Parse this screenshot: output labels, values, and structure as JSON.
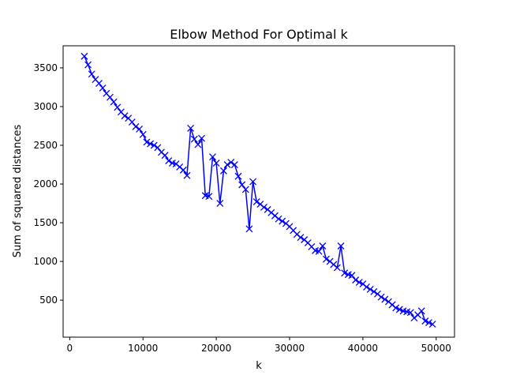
{
  "colors": {
    "series": "#0000ff",
    "axes": "#000000",
    "background": "#ffffff"
  },
  "chart_data": {
    "type": "line",
    "title": "Elbow Method For Optimal k",
    "xlabel": "k",
    "ylabel": "Sum of squared distances",
    "xlim": [
      -900,
      52500
    ],
    "ylim": [
      22,
      3785
    ],
    "grid": false,
    "marker": "x",
    "xticks": [
      0,
      10000,
      20000,
      30000,
      40000,
      50000
    ],
    "yticks": [
      500,
      1000,
      1500,
      2000,
      2500,
      3000,
      3500
    ],
    "series": [
      {
        "x": [
          2000,
          2500,
          3000,
          3500,
          4000,
          4500,
          5000,
          5500,
          6000,
          6500,
          7000,
          7500,
          8000,
          8500,
          9000,
          9500,
          10000,
          10500,
          11000,
          11500,
          12000,
          12500,
          13000,
          13500,
          14000,
          14500,
          15000,
          15500,
          16000,
          16500,
          17000,
          17500,
          18000,
          18500,
          19000,
          19500,
          20000,
          20500,
          21000,
          21500,
          22000,
          22500,
          23000,
          23500,
          24000,
          24500,
          25000,
          25500,
          26000,
          26500,
          27000,
          27500,
          28000,
          28500,
          29000,
          29500,
          30000,
          30500,
          31000,
          31500,
          32000,
          32500,
          33000,
          33500,
          34000,
          34500,
          35000,
          35500,
          36000,
          36500,
          37000,
          37500,
          38000,
          38500,
          39000,
          39500,
          40000,
          40500,
          41000,
          41500,
          42000,
          42500,
          43000,
          43500,
          44000,
          44500,
          45000,
          45500,
          46000,
          46500,
          47000,
          47500,
          48000,
          48500,
          49000,
          49500
        ],
        "values": [
          3650,
          3540,
          3420,
          3350,
          3300,
          3240,
          3170,
          3120,
          3060,
          2990,
          2930,
          2880,
          2850,
          2800,
          2740,
          2710,
          2640,
          2540,
          2520,
          2500,
          2470,
          2410,
          2370,
          2300,
          2270,
          2260,
          2220,
          2180,
          2110,
          2720,
          2580,
          2510,
          2590,
          1850,
          1840,
          2350,
          2270,
          1750,
          2170,
          2250,
          2280,
          2250,
          2100,
          1990,
          1930,
          1420,
          2030,
          1770,
          1740,
          1700,
          1670,
          1630,
          1590,
          1550,
          1520,
          1490,
          1450,
          1400,
          1350,
          1310,
          1280,
          1240,
          1190,
          1140,
          1130,
          1200,
          1030,
          1000,
          960,
          920,
          1200,
          850,
          830,
          820,
          760,
          730,
          710,
          670,
          640,
          610,
          580,
          540,
          510,
          480,
          440,
          400,
          380,
          360,
          350,
          340,
          270,
          310,
          360,
          230,
          210,
          190
        ]
      }
    ]
  }
}
